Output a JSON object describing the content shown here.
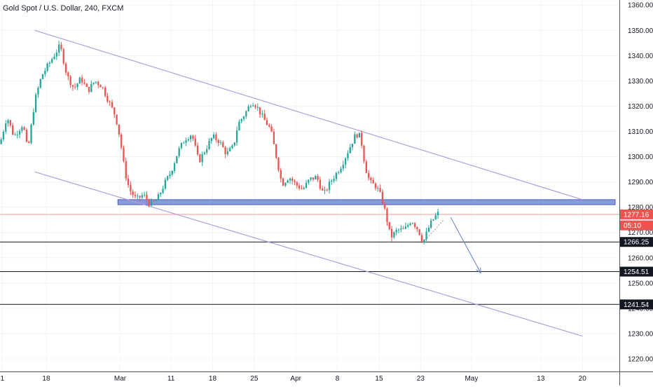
{
  "title": "Gold Spot / U.S. Dollar, 240, FXCM",
  "chart_data": {
    "type": "candlestick",
    "title": "Gold Spot / U.S. Dollar, 240, FXCM",
    "ylim": [
      1215,
      1362
    ],
    "y_ticks": [
      1220,
      1230,
      1240,
      1250,
      1260,
      1270,
      1280,
      1290,
      1300,
      1310,
      1320,
      1330,
      1340,
      1350,
      1360
    ],
    "x_ticks": [
      "1",
      "18",
      "Mar",
      "11",
      "18",
      "25",
      "Apr",
      "8",
      "15",
      "23",
      "May",
      "13",
      "20"
    ],
    "x_tick_pos": [
      0.5,
      10,
      26,
      37,
      46,
      55,
      64,
      73,
      82,
      91,
      102,
      117,
      126
    ],
    "x_range": [
      0,
      134
    ],
    "grid": true,
    "colors": {
      "up": "#26a69a",
      "down": "#ef5350",
      "channel": "#b39ddb",
      "zone_fill": "#7b91d6",
      "zone_border": "#3f51b5",
      "level": "#131722",
      "price": "#ef5350",
      "arrow": "#5f7bbf"
    },
    "price_path": [
      [
        0,
        1305
      ],
      [
        1.5,
        1316
      ],
      [
        3,
        1308
      ],
      [
        5,
        1313
      ],
      [
        6,
        1302
      ],
      [
        7.5,
        1322
      ],
      [
        9,
        1332
      ],
      [
        11,
        1338
      ],
      [
        13,
        1344
      ],
      [
        14.5,
        1332
      ],
      [
        16,
        1327
      ],
      [
        17.5,
        1331
      ],
      [
        19,
        1326
      ],
      [
        20.5,
        1330
      ],
      [
        22,
        1328
      ],
      [
        23.5,
        1322
      ],
      [
        25,
        1316
      ],
      [
        26,
        1307
      ],
      [
        27,
        1294
      ],
      [
        28,
        1287
      ],
      [
        29.5,
        1283
      ],
      [
        31,
        1285
      ],
      [
        32.5,
        1281
      ],
      [
        34,
        1283
      ],
      [
        35.5,
        1289
      ],
      [
        37,
        1294
      ],
      [
        38.5,
        1302
      ],
      [
        40,
        1307
      ],
      [
        41.5,
        1309
      ],
      [
        43,
        1298
      ],
      [
        44.5,
        1303
      ],
      [
        46,
        1308
      ],
      [
        47.5,
        1306
      ],
      [
        49,
        1301
      ],
      [
        50.5,
        1304
      ],
      [
        51.5,
        1313
      ],
      [
        53,
        1317
      ],
      [
        54.5,
        1322
      ],
      [
        55.5,
        1320
      ],
      [
        57,
        1315
      ],
      [
        58.5,
        1311
      ],
      [
        60,
        1298
      ],
      [
        61,
        1289
      ],
      [
        62.5,
        1292
      ],
      [
        64,
        1289
      ],
      [
        65.5,
        1287
      ],
      [
        67,
        1291
      ],
      [
        68.5,
        1292
      ],
      [
        70,
        1285
      ],
      [
        71.5,
        1290
      ],
      [
        73,
        1294
      ],
      [
        74,
        1297
      ],
      [
        75.5,
        1303
      ],
      [
        77,
        1309
      ],
      [
        78,
        1308
      ],
      [
        79,
        1296
      ],
      [
        80,
        1290
      ],
      [
        81.5,
        1288
      ],
      [
        82.5,
        1284
      ],
      [
        83.5,
        1277
      ],
      [
        84.5,
        1268
      ],
      [
        86,
        1271
      ],
      [
        87.5,
        1271
      ],
      [
        89,
        1275
      ],
      [
        90.5,
        1271
      ],
      [
        91.5,
        1266
      ],
      [
        93,
        1273
      ],
      [
        94,
        1276
      ],
      [
        95,
        1278
      ]
    ],
    "candle_seed": 7,
    "candle_count": 190,
    "channel_upper": [
      [
        7.5,
        1350
      ],
      [
        126,
        1283
      ]
    ],
    "channel_lower": [
      [
        7.5,
        1294
      ],
      [
        126,
        1229
      ]
    ],
    "support_zone": [
      1281,
      1283
    ],
    "horizontal_levels": [
      1266.25,
      1254.51,
      1241.54
    ],
    "price_line": 1277.16,
    "projection_arrow": [
      [
        97.5,
        1276
      ],
      [
        104,
        1254
      ]
    ],
    "trendline_small": [
      [
        92,
        1267
      ],
      [
        96,
        1275
      ]
    ],
    "labels": [
      {
        "text": "1277.16",
        "value": 1277.16,
        "bg": "#ef5350",
        "fg": "#ffffff"
      },
      {
        "text": "05:10",
        "value": 1272.8,
        "bg": "#ef5350",
        "fg": "#ffffff"
      },
      {
        "text": "1266.25",
        "value": 1266.25,
        "bg": "#131722",
        "fg": "#ffffff"
      },
      {
        "text": "1254.51",
        "value": 1254.51,
        "bg": "#131722",
        "fg": "#ffffff"
      },
      {
        "text": "1241.54",
        "value": 1241.54,
        "bg": "#131722",
        "fg": "#ffffff"
      }
    ]
  }
}
